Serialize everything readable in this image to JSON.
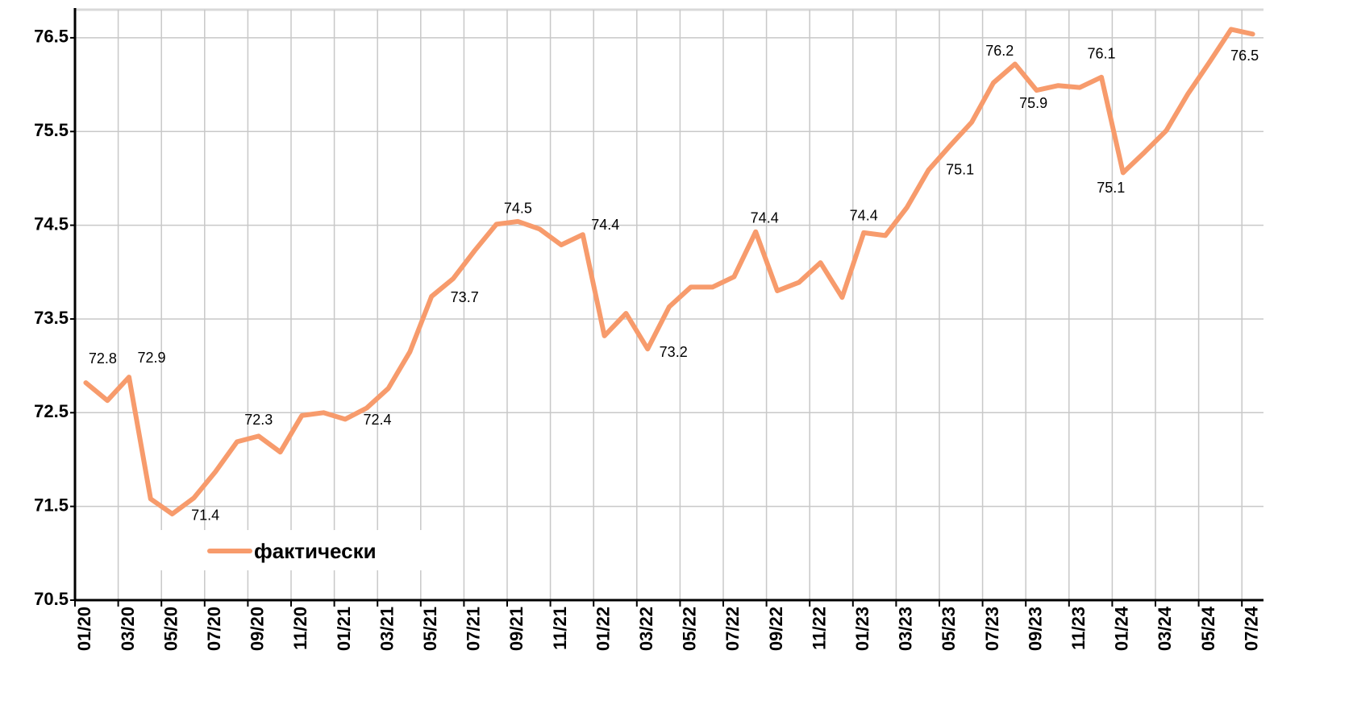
{
  "chart_data": {
    "type": "line",
    "categories": [
      "01/20",
      null,
      "03/20",
      null,
      "05/20",
      null,
      "07/20",
      null,
      "09/20",
      null,
      "11/20",
      null,
      "01/21",
      null,
      "03/21",
      null,
      "05/21",
      null,
      "07/21",
      null,
      "09/21",
      null,
      "11/21",
      null,
      "01/22",
      null,
      "03/22",
      null,
      "05/22",
      null,
      "07/22",
      null,
      "09/22",
      null,
      "11/22",
      null,
      "01/23",
      null,
      "03/23",
      null,
      "05/23",
      null,
      "07/23",
      null,
      "09/23",
      null,
      "11/23",
      null,
      "01/24",
      null,
      "03/24",
      null,
      "05/24",
      null,
      "07/24"
    ],
    "series": [
      {
        "name": "фактически",
        "color": "#f79b6c",
        "values": [
          72.82,
          72.63,
          72.88,
          71.58,
          71.42,
          71.59,
          71.87,
          72.19,
          72.25,
          72.08,
          72.47,
          72.5,
          72.43,
          72.55,
          72.76,
          73.15,
          73.74,
          73.93,
          74.23,
          74.51,
          74.54,
          74.46,
          74.29,
          74.4,
          73.32,
          73.56,
          73.18,
          73.63,
          73.84,
          73.84,
          73.95,
          74.43,
          73.8,
          73.89,
          74.1,
          73.73,
          74.42,
          74.39,
          74.69,
          75.09,
          75.35,
          75.6,
          76.02,
          76.22,
          75.94,
          75.99,
          75.97,
          76.08,
          75.06,
          75.28,
          75.51,
          75.9,
          76.24,
          76.59,
          76.54
        ],
        "value_labels": [
          "72.8",
          null,
          "72.9",
          null,
          "71.4",
          null,
          null,
          null,
          "72.3",
          null,
          null,
          null,
          "72.4",
          null,
          null,
          null,
          "73.7",
          null,
          null,
          null,
          "74.5",
          null,
          null,
          "74.4",
          null,
          null,
          "73.2",
          null,
          null,
          null,
          null,
          "74.4",
          null,
          null,
          null,
          null,
          "74.4",
          null,
          null,
          "75.1",
          null,
          null,
          null,
          "76.2",
          "75.9",
          null,
          null,
          "76.1",
          "75.1",
          null,
          null,
          null,
          null,
          null,
          "76.5"
        ]
      }
    ],
    "ylim": [
      70.5,
      76.8
    ],
    "yticks": [
      70.5,
      71.5,
      72.5,
      73.5,
      74.5,
      75.5,
      76.5
    ],
    "grid": true
  }
}
